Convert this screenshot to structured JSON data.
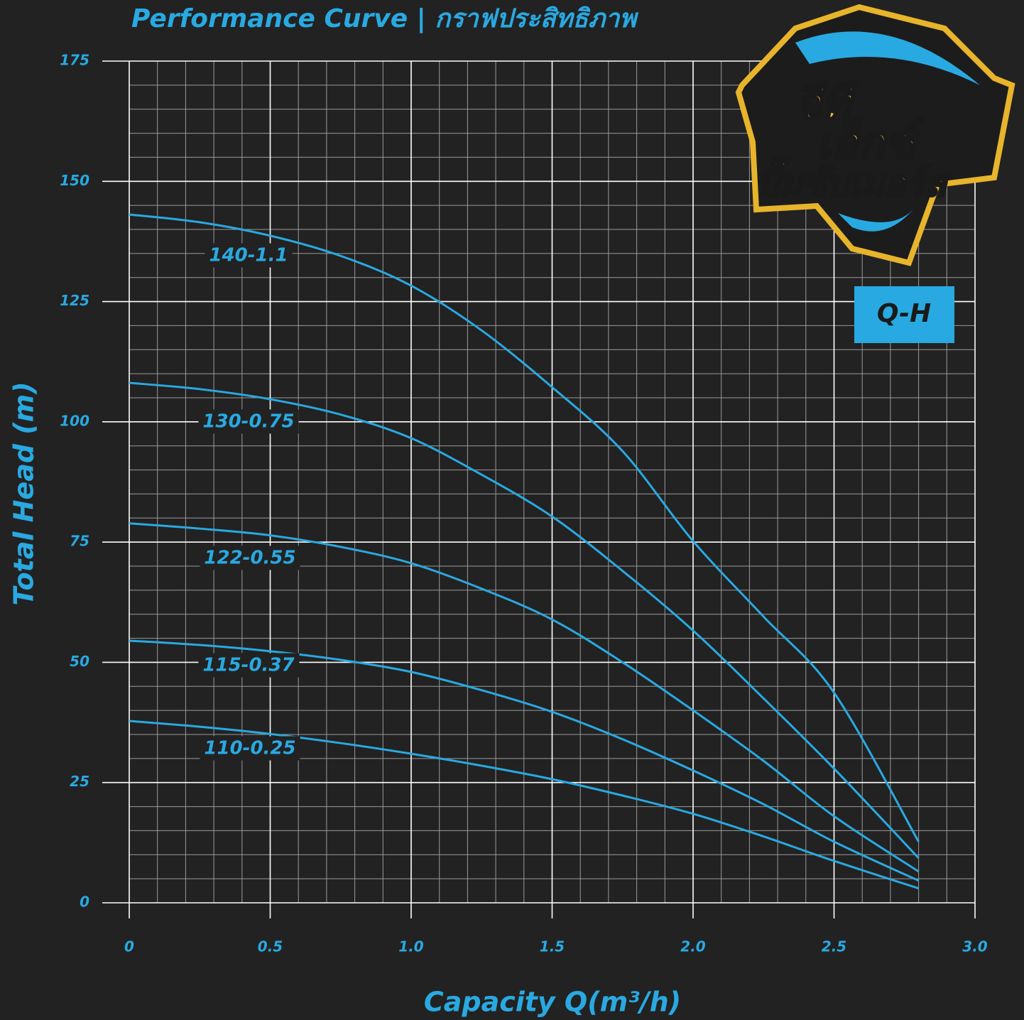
{
  "chart_data": {
    "type": "line",
    "title": "Performance Curve | กราฟประสิทธิภาพ",
    "logo": [
      "จีที",
      "เอ็กซ์",
      "ปั๊มซับเมอร์ส"
    ],
    "badge": "Q-H",
    "xlabel": "Capacity Q(m³/h)",
    "ylabel": "Total Head (m)",
    "x": [
      0,
      0.25,
      0.5,
      0.75,
      1,
      1.25,
      1.5,
      1.75,
      2,
      2.25,
      2.5,
      2.8
    ],
    "series": [
      {
        "name": "140-1.1",
        "color": "#29a9e1",
        "values": [
          143.1,
          141.5,
          138.7,
          134.5,
          128.3,
          119,
          107.2,
          93.9,
          75.2,
          59.5,
          43.7,
          12.7
        ]
      },
      {
        "name": "130-0.75",
        "color": "#29a9e1",
        "values": [
          108.1,
          106.8,
          104.7,
          101.5,
          96.6,
          89,
          80.3,
          69,
          56.6,
          42.5,
          27.9,
          9.3
        ]
      },
      {
        "name": "122-0.55",
        "color": "#29a9e1",
        "values": [
          78.9,
          77.8,
          76.4,
          74,
          70.6,
          65.3,
          58.9,
          50,
          40,
          29.5,
          18,
          6.5
        ]
      },
      {
        "name": "115-0.37",
        "color": "#29a9e1",
        "values": [
          54.5,
          53.6,
          52.3,
          50.5,
          48,
          44.2,
          39.7,
          34,
          27.5,
          20.5,
          12.7,
          4.6
        ]
      },
      {
        "name": "110-0.25",
        "color": "#29a9e1",
        "values": [
          37.8,
          36.6,
          35.1,
          33.2,
          31,
          28.5,
          25.7,
          22.3,
          18.5,
          13.8,
          8.7,
          3
        ]
      }
    ],
    "xlim": [
      0,
      3
    ],
    "xticks": [
      0,
      0.5,
      {
        "value": 1,
        "label": "1.0"
      },
      1.5,
      {
        "value": 2,
        "label": "2.0"
      },
      2.5,
      {
        "value": 3,
        "label": "3.0"
      }
    ],
    "ylim": [
      0,
      175
    ],
    "yticks": [
      0,
      25,
      50,
      75,
      100,
      125,
      150,
      175
    ],
    "grid": true
  }
}
